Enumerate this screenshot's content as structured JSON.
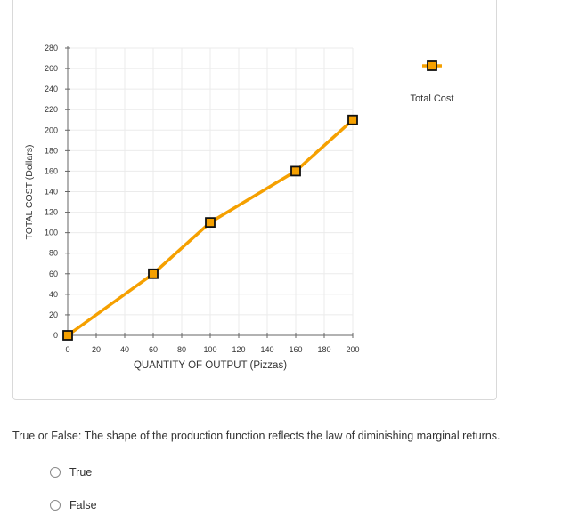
{
  "chart_data": {
    "type": "line",
    "xlabel": "QUANTITY OF OUTPUT (Pizzas)",
    "ylabel": "TOTAL COST (Dollars)",
    "xlim": [
      0,
      200
    ],
    "ylim": [
      0,
      280
    ],
    "xticks": [
      0,
      20,
      40,
      60,
      80,
      100,
      120,
      140,
      160,
      180,
      200
    ],
    "yticks": [
      0,
      20,
      40,
      60,
      80,
      100,
      120,
      140,
      160,
      180,
      200,
      220,
      240,
      260,
      280
    ],
    "grid": true,
    "legend_position": "top-right",
    "series": [
      {
        "name": "Total Cost",
        "color": "#f5a000",
        "marker_fill": "#f5a000",
        "marker_edge": "#111111",
        "x": [
          0,
          60,
          100,
          160,
          200
        ],
        "y": [
          0,
          60,
          110,
          160,
          210
        ]
      }
    ]
  },
  "question": {
    "text": "True or False: The shape of the production function reflects the law of diminishing marginal returns.",
    "options": [
      "True",
      "False"
    ]
  }
}
